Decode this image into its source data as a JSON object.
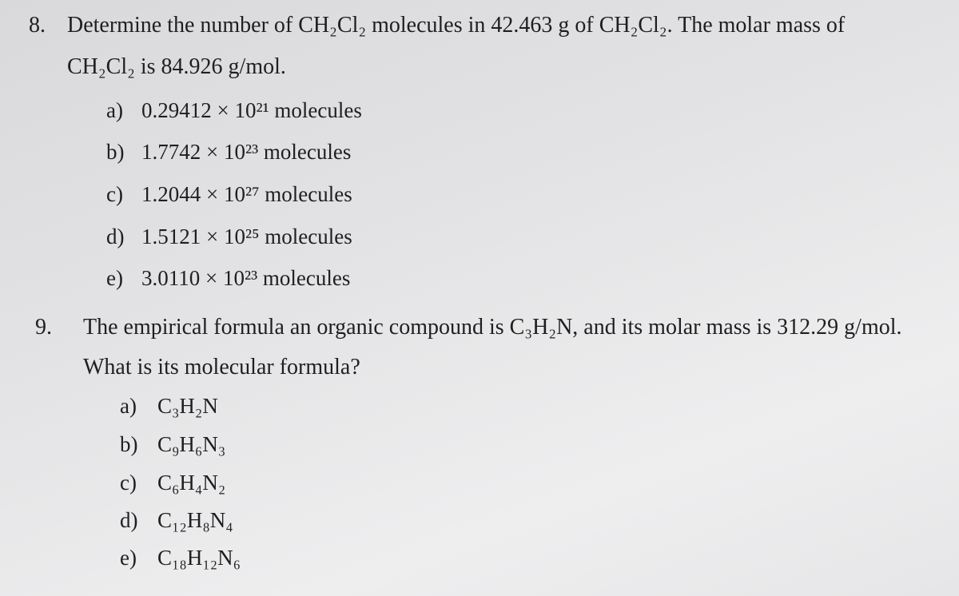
{
  "questions": [
    {
      "number": "8.",
      "lines": [
        "Determine the number of CH₂Cl₂ molecules in 42.463 g of CH₂Cl₂. The molar mass of",
        "CH₂Cl₂ is 84.926 g/mol."
      ],
      "options": [
        {
          "letter": "a)",
          "text": "0.29412 × 10²¹ molecules"
        },
        {
          "letter": "b)",
          "text": "1.7742 × 10²³ molecules"
        },
        {
          "letter": "c)",
          "text": "1.2044 × 10²⁷ molecules"
        },
        {
          "letter": "d)",
          "text": "1.5121 × 10²⁵ molecules"
        },
        {
          "letter": "e)",
          "text": "3.0110 × 10²³ molecules"
        }
      ]
    },
    {
      "number": "9.",
      "lines": [
        "The empirical formula an organic compound is C₃H₂N, and its molar mass is 312.29 g/mol.",
        "What is its molecular formula?"
      ],
      "options": [
        {
          "letter": "a)",
          "text": "C₃H₂N"
        },
        {
          "letter": "b)",
          "text": "C₉H₆N₃"
        },
        {
          "letter": "c)",
          "text": "C₆H₄N₂"
        },
        {
          "letter": "d)",
          "text": "C₁₂H₈N₄"
        },
        {
          "letter": "e)",
          "text": "C₁₈H₁₂N₆"
        }
      ]
    }
  ]
}
